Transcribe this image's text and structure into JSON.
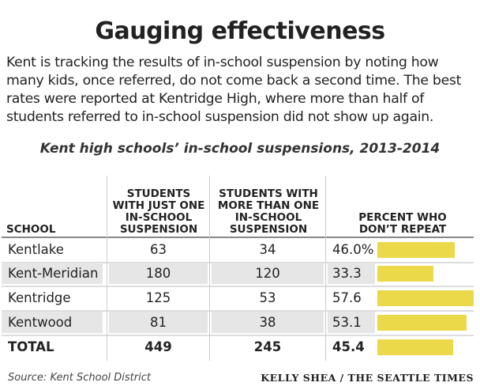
{
  "title": "Gauging effectiveness",
  "intro": "Kent is tracking the results of in-school suspension by noting how many kids, once referred, do not come back a second time. The best rates were reported at Kentridge High, where more than half of students referred to in-school suspension did not show up again.",
  "chart_data": {
    "type": "table",
    "title": "Kent high schools’ in-school suspensions, 2013-2014",
    "columns": [
      "SCHOOL",
      "STUDENTS WITH JUST ONE IN-SCHOOL SUSPENSION",
      "STUDENTS WITH MORE THAN ONE IN-SCHOOL SUSPENSION",
      "PERCENT WHO DON’T REPEAT"
    ],
    "rows": [
      {
        "school": "Kentlake",
        "one": "63",
        "more": "34",
        "pct_label": "46.0%",
        "pct": 46.0
      },
      {
        "school": "Kent-Meridian",
        "one": "180",
        "more": "120",
        "pct_label": "33.3",
        "pct": 33.3
      },
      {
        "school": "Kentridge",
        "one": "125",
        "more": "53",
        "pct_label": "57.6",
        "pct": 57.6
      },
      {
        "school": "Kentwood",
        "one": "81",
        "more": "38",
        "pct_label": "53.1",
        "pct": 53.1
      },
      {
        "school": "TOTAL",
        "one": "449",
        "more": "245",
        "pct_label": "45.4",
        "pct": 45.4
      }
    ],
    "bar_color": "#ecd94a"
  },
  "source": "Source: Kent School District",
  "credit": "KELLY SHEA / THE SEATTLE TIMES"
}
